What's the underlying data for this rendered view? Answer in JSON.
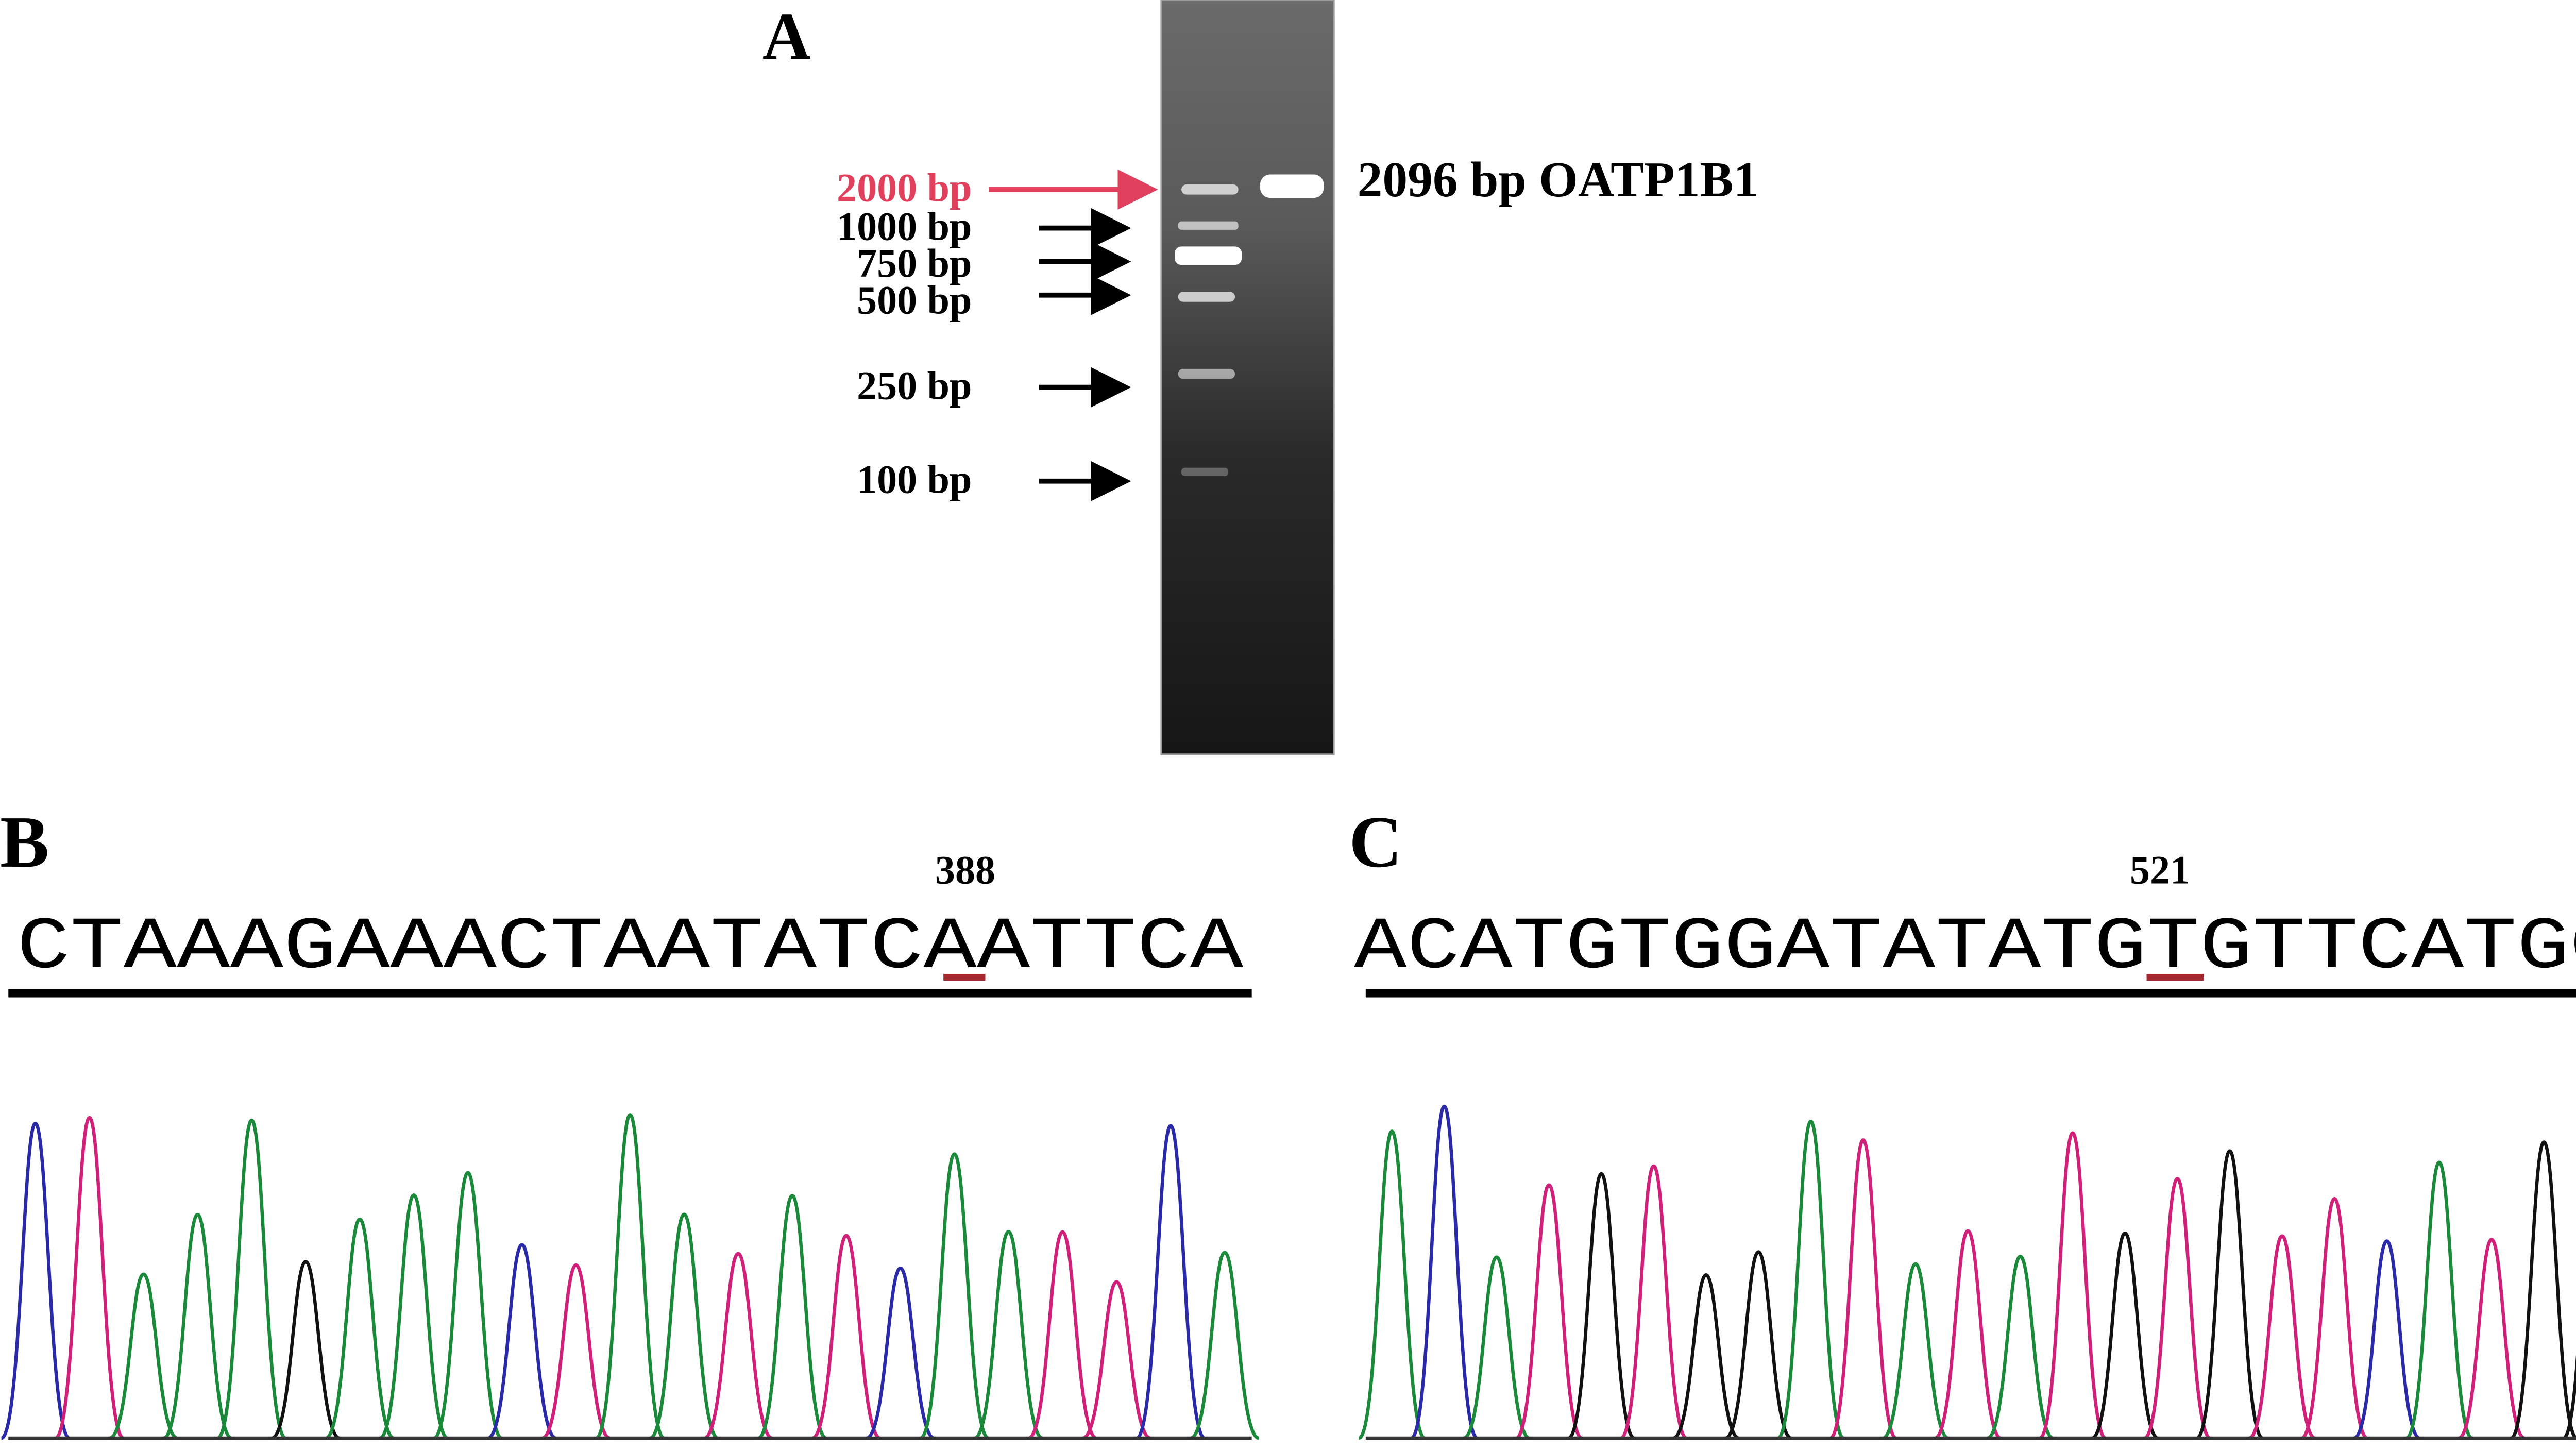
{
  "panel_a": {
    "label": "A",
    "ladder": [
      "2000 bp",
      "1000 bp",
      "750 bp",
      "500 bp",
      "250 bp",
      "100 bp"
    ],
    "band_label": "2096 bp OATP1B1"
  },
  "panel_b": {
    "label": "B",
    "position": "388",
    "sequence": "CTAAAGAAACTAATATCAATTCA"
  },
  "panel_c": {
    "label": "C",
    "position": "521",
    "sequence": "ACATGTGGATATATGTGTTCATGG"
  }
}
